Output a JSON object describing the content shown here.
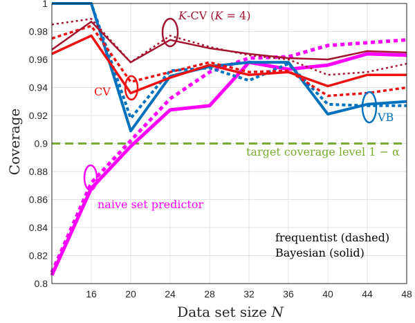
{
  "chart_data": {
    "type": "line",
    "xlabel": "Data set size N",
    "ylabel": "Coverage",
    "xlim": [
      12,
      48
    ],
    "ylim": [
      0.8,
      1.0
    ],
    "x_ticks": [
      16,
      20,
      24,
      28,
      32,
      36,
      40,
      44,
      48
    ],
    "y_ticks": [
      0.8,
      0.82,
      0.84,
      0.86,
      0.88,
      0.9,
      0.92,
      0.94,
      0.96,
      0.98,
      1
    ],
    "x_tick_labels": [
      "16",
      "20",
      "24",
      "28",
      "32",
      "36",
      "40",
      "44",
      "48"
    ],
    "y_tick_labels": [
      "0.8",
      "0.82",
      "0.84",
      "0.86",
      "0.88",
      "0.9",
      "0.92",
      "0.94",
      "0.96",
      "0.98",
      "1"
    ],
    "grid": true,
    "x": [
      12,
      16,
      20,
      24,
      28,
      32,
      36,
      40,
      44,
      48
    ],
    "series": [
      {
        "group": "naive",
        "style": "frequentist",
        "color": "#ff00ff",
        "values": [
          0.808,
          0.872,
          0.902,
          0.932,
          0.951,
          0.961,
          0.962,
          0.97,
          0.972,
          0.974
        ]
      },
      {
        "group": "naive",
        "style": "bayesian",
        "color": "#ff00ff",
        "values": [
          0.806,
          0.868,
          0.898,
          0.924,
          0.927,
          0.958,
          0.953,
          0.956,
          0.964,
          0.963
        ]
      },
      {
        "group": "VB",
        "style": "frequentist",
        "color": "#0072bd",
        "values": [
          1.0,
          1.0,
          0.918,
          0.952,
          0.954,
          0.945,
          0.957,
          0.928,
          0.927,
          0.927
        ]
      },
      {
        "group": "VB",
        "style": "bayesian",
        "color": "#0072bd",
        "values": [
          1.0,
          1.0,
          0.909,
          0.948,
          0.955,
          0.958,
          0.958,
          0.921,
          0.928,
          0.93
        ]
      },
      {
        "group": "CV",
        "style": "frequentist",
        "color": "#ee1111",
        "values": [
          0.975,
          0.984,
          0.944,
          0.951,
          0.958,
          0.951,
          0.952,
          0.934,
          0.936,
          0.94
        ]
      },
      {
        "group": "CV",
        "style": "bayesian",
        "color": "#ee1111",
        "values": [
          0.964,
          0.977,
          0.936,
          0.947,
          0.956,
          0.949,
          0.951,
          0.941,
          0.949,
          0.949
        ]
      },
      {
        "group": "KCV",
        "style": "frequentist",
        "color": "#a2142f",
        "values": [
          0.985,
          0.989,
          0.958,
          0.977,
          0.969,
          0.963,
          0.96,
          0.949,
          0.951,
          0.957
        ]
      },
      {
        "group": "KCV",
        "style": "bayesian",
        "color": "#a2142f",
        "values": [
          0.967,
          0.987,
          0.958,
          0.974,
          0.968,
          0.964,
          0.961,
          0.96,
          0.966,
          0.965
        ]
      }
    ],
    "target": {
      "value": 0.9,
      "color": "#77ac30"
    },
    "annotations": {
      "kcv": {
        "prefix": "K",
        "middle": "-CV (",
        "kvar": "K",
        "suffix": " = 4)",
        "color": "#a2142f"
      },
      "cv": {
        "text": "CV",
        "color": "#ee1111"
      },
      "vb": {
        "text": "VB",
        "color": "#0072bd"
      },
      "target": {
        "text": "target coverage level 1 − α",
        "color": "#77ac30"
      },
      "naive": {
        "text": "naive set predictor",
        "color": "#ff00ff"
      },
      "frequentist": {
        "text": "frequentist (dashed)",
        "color": "#000000"
      },
      "bayesian": {
        "text": "Bayesian (solid)",
        "color": "#000000"
      }
    }
  }
}
